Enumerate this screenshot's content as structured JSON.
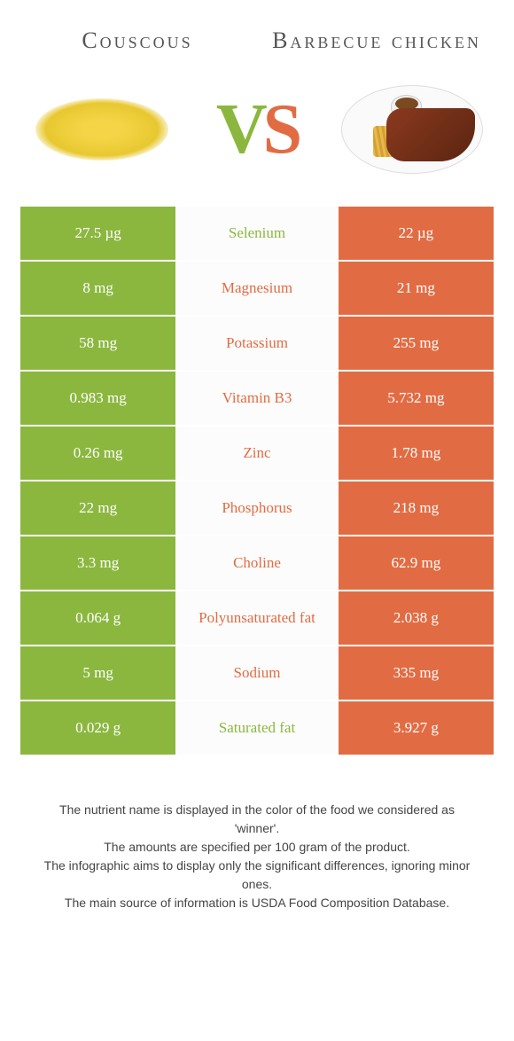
{
  "colors": {
    "left": "#8bb73f",
    "right": "#e16c44",
    "text_mid_left": "#8bb73f",
    "text_mid_right": "#e16c44",
    "title_gray": "#666666"
  },
  "header": {
    "left_title": "Couscous",
    "right_title": "Barbecue chicken",
    "vs_v": "V",
    "vs_s": "S"
  },
  "rows": [
    {
      "left": "27.5 µg",
      "mid": "Selenium",
      "right": "22 µg",
      "winner": "left"
    },
    {
      "left": "8 mg",
      "mid": "Magnesium",
      "right": "21 mg",
      "winner": "right"
    },
    {
      "left": "58 mg",
      "mid": "Potassium",
      "right": "255 mg",
      "winner": "right"
    },
    {
      "left": "0.983 mg",
      "mid": "Vitamin B3",
      "right": "5.732 mg",
      "winner": "right"
    },
    {
      "left": "0.26 mg",
      "mid": "Zinc",
      "right": "1.78 mg",
      "winner": "right"
    },
    {
      "left": "22 mg",
      "mid": "Phosphorus",
      "right": "218 mg",
      "winner": "right"
    },
    {
      "left": "3.3 mg",
      "mid": "Choline",
      "right": "62.9 mg",
      "winner": "right"
    },
    {
      "left": "0.064 g",
      "mid": "Polyunsaturated fat",
      "right": "2.038 g",
      "winner": "right"
    },
    {
      "left": "5 mg",
      "mid": "Sodium",
      "right": "335 mg",
      "winner": "right"
    },
    {
      "left": "0.029 g",
      "mid": "Saturated fat",
      "right": "3.927 g",
      "winner": "left"
    }
  ],
  "footer": {
    "line1": "The nutrient name is displayed in the color of the food we considered as 'winner'.",
    "line2": "The amounts are specified per 100 gram of the product.",
    "line3": "The infographic aims to display only the significant differences, ignoring minor ones.",
    "line4": "The main source of information is USDA Food Composition Database."
  }
}
